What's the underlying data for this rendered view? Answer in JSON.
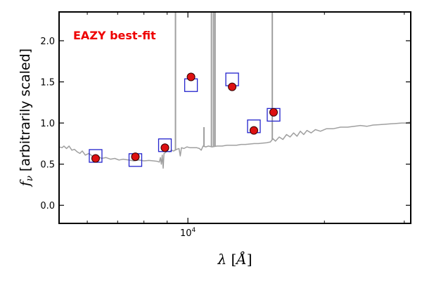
{
  "chart_data": {
    "type": "scatter",
    "annotation": "EAZY best-fit",
    "colors": {
      "model": "#a0a0a0",
      "template": "#2222cc",
      "observed_fill": "#dd1111",
      "observed_edge": "#330000",
      "annotation": "#ee0000"
    },
    "xscale": "log",
    "xlim": [
      5200,
      31000
    ],
    "ylim": [
      -0.22,
      2.35
    ],
    "xticks": [
      {
        "value": 10000,
        "base": "10",
        "exp": "4"
      }
    ],
    "yticks": [
      0.0,
      0.5,
      1.0,
      1.5,
      2.0
    ],
    "xlabel_symbol": "λ",
    "xlabel_unit": "Å",
    "ylabel_symbol": "f",
    "ylabel_sub": "ν",
    "ylabel_text": "[arbitrarily scaled]",
    "observed_points": [
      {
        "x": 6260,
        "y": 0.57
      },
      {
        "x": 7660,
        "y": 0.59
      },
      {
        "x": 8900,
        "y": 0.7
      },
      {
        "x": 10160,
        "y": 1.56
      },
      {
        "x": 12520,
        "y": 1.44,
        "yerr": 0.03
      },
      {
        "x": 13980,
        "y": 0.91,
        "yerr": 0.03
      },
      {
        "x": 15450,
        "y": 1.13
      }
    ],
    "template_points": [
      {
        "x": 6260,
        "y": 0.6
      },
      {
        "x": 7660,
        "y": 0.55
      },
      {
        "x": 8900,
        "y": 0.73
      },
      {
        "x": 10160,
        "y": 1.46
      },
      {
        "x": 12520,
        "y": 1.53
      },
      {
        "x": 13980,
        "y": 0.96
      },
      {
        "x": 15450,
        "y": 1.1
      }
    ],
    "model_spectrum": [
      [
        5200,
        0.71
      ],
      [
        5280,
        0.7
      ],
      [
        5330,
        0.72
      ],
      [
        5400,
        0.69
      ],
      [
        5470,
        0.72
      ],
      [
        5550,
        0.67
      ],
      [
        5620,
        0.68
      ],
      [
        5700,
        0.65
      ],
      [
        5780,
        0.63
      ],
      [
        5850,
        0.66
      ],
      [
        5940,
        0.61
      ],
      [
        6050,
        0.63
      ],
      [
        6180,
        0.59
      ],
      [
        6320,
        0.6
      ],
      [
        6450,
        0.57
      ],
      [
        6600,
        0.58
      ],
      [
        6750,
        0.56
      ],
      [
        6900,
        0.57
      ],
      [
        7050,
        0.55
      ],
      [
        7200,
        0.56
      ],
      [
        7400,
        0.55
      ],
      [
        7600,
        0.54
      ],
      [
        7800,
        0.55
      ],
      [
        8000,
        0.54
      ],
      [
        8200,
        0.545
      ],
      [
        8400,
        0.54
      ],
      [
        8550,
        0.535
      ],
      [
        8650,
        0.525
      ],
      [
        8700,
        0.58
      ],
      [
        8740,
        0.5
      ],
      [
        8780,
        0.61
      ],
      [
        8820,
        0.45
      ],
      [
        8860,
        0.63
      ],
      [
        8920,
        0.64
      ],
      [
        9000,
        0.66
      ],
      [
        9100,
        0.65
      ],
      [
        9200,
        0.67
      ],
      [
        9300,
        0.66
      ],
      [
        9450,
        0.68
      ],
      [
        9560,
        0.69
      ],
      [
        9620,
        0.6
      ],
      [
        9680,
        0.7
      ],
      [
        9800,
        0.69
      ],
      [
        9950,
        0.71
      ],
      [
        10100,
        0.7
      ],
      [
        10250,
        0.7
      ],
      [
        10450,
        0.7
      ],
      [
        10600,
        0.69
      ],
      [
        10700,
        0.67
      ],
      [
        10800,
        0.72
      ],
      [
        10950,
        0.71
      ],
      [
        11100,
        0.72
      ],
      [
        11300,
        0.71
      ],
      [
        11600,
        0.72
      ],
      [
        11900,
        0.72
      ],
      [
        12200,
        0.73
      ],
      [
        12500,
        0.73
      ],
      [
        12800,
        0.73
      ],
      [
        13100,
        0.74
      ],
      [
        13400,
        0.74
      ],
      [
        13700,
        0.745
      ],
      [
        14000,
        0.75
      ],
      [
        14300,
        0.75
      ],
      [
        14600,
        0.755
      ],
      [
        14900,
        0.76
      ],
      [
        15200,
        0.77
      ],
      [
        15400,
        0.81
      ],
      [
        15600,
        0.78
      ],
      [
        15900,
        0.83
      ],
      [
        16200,
        0.8
      ],
      [
        16500,
        0.86
      ],
      [
        16800,
        0.83
      ],
      [
        17100,
        0.88
      ],
      [
        17400,
        0.84
      ],
      [
        17700,
        0.9
      ],
      [
        18000,
        0.86
      ],
      [
        18300,
        0.91
      ],
      [
        18700,
        0.88
      ],
      [
        19100,
        0.92
      ],
      [
        19600,
        0.9
      ],
      [
        20200,
        0.93
      ],
      [
        20900,
        0.93
      ],
      [
        21700,
        0.95
      ],
      [
        22500,
        0.95
      ],
      [
        23300,
        0.96
      ],
      [
        24000,
        0.97
      ],
      [
        24800,
        0.96
      ],
      [
        25600,
        0.975
      ],
      [
        26400,
        0.98
      ],
      [
        27200,
        0.985
      ],
      [
        28000,
        0.99
      ],
      [
        28800,
        0.995
      ],
      [
        29600,
        1.0
      ],
      [
        30200,
        1.0
      ],
      [
        31000,
        1.01
      ]
    ],
    "emission_lines": [
      {
        "x": 9390,
        "y_top": 2.4
      },
      {
        "x": 10850,
        "y_top": 0.95
      },
      {
        "x": 11270,
        "y_top": 2.4
      },
      {
        "x": 11390,
        "y_top": 2.4
      },
      {
        "x": 11480,
        "y_top": 2.4
      },
      {
        "x": 15350,
        "y_top": 2.4
      }
    ]
  }
}
